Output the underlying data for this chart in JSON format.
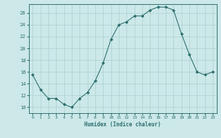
{
  "x": [
    0,
    1,
    2,
    3,
    4,
    5,
    6,
    7,
    8,
    9,
    10,
    11,
    12,
    13,
    14,
    15,
    16,
    17,
    18,
    19,
    20,
    21,
    22,
    23
  ],
  "y": [
    15.5,
    13.0,
    11.5,
    11.5,
    10.5,
    10.0,
    11.5,
    12.5,
    14.5,
    17.5,
    21.5,
    24.0,
    24.5,
    25.5,
    25.5,
    26.5,
    27.0,
    27.0,
    26.5,
    22.5,
    19.0,
    16.0,
    15.5,
    16.0
  ],
  "line_color": "#2d6e6e",
  "marker": "D",
  "marker_size": 2.0,
  "bg_color": "#cce8e8",
  "grid_color": "#aacfcf",
  "xlabel": "Humidex (Indice chaleur)",
  "xlim": [
    -0.5,
    23.5
  ],
  "ylim": [
    9.0,
    27.5
  ],
  "yticks": [
    10,
    12,
    14,
    16,
    18,
    20,
    22,
    24,
    26
  ],
  "xticks": [
    0,
    1,
    2,
    3,
    4,
    5,
    6,
    7,
    8,
    9,
    10,
    11,
    12,
    13,
    14,
    15,
    16,
    17,
    18,
    19,
    20,
    21,
    22,
    23
  ],
  "axis_color": "#2d6e6e",
  "tick_color": "#2d6e6e",
  "label_color": "#2d6e6e"
}
